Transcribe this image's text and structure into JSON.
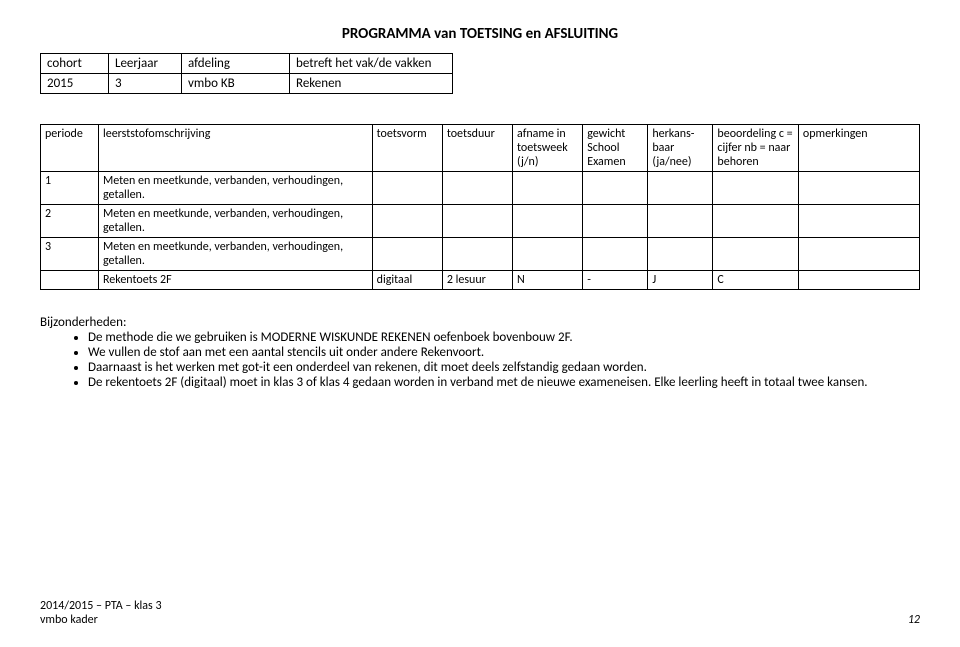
{
  "title": "PROGRAMMA van TOETSING en AFSLUITING",
  "meta": {
    "headers": [
      "cohort",
      "Leerjaar",
      "afdeling",
      "betreft het vak/de vakken"
    ],
    "row": [
      "2015",
      "3",
      "vmbo KB",
      "Rekenen"
    ],
    "col_widths": [
      "55px",
      "60px",
      "95px",
      "150px"
    ]
  },
  "main": {
    "headers": [
      "periode",
      "leerststofomschrijving",
      "toetsvorm",
      "toetsduur",
      "afname in toetsweek (j/n)",
      "gewicht School Examen",
      "herkans-baar (ja/nee)",
      "beoordeling c = cijfer nb = naar behoren",
      "opmerkingen"
    ],
    "col_widths": [
      "48px",
      "260px",
      "60px",
      "60px",
      "60px",
      "55px",
      "55px",
      "75px",
      "110px"
    ],
    "rows": [
      [
        "1",
        "Meten en meetkunde, verbanden, verhoudingen, getallen.",
        "",
        "",
        "",
        "",
        "",
        "",
        ""
      ],
      [
        "2",
        "Meten en meetkunde, verbanden, verhoudingen, getallen.",
        "",
        "",
        "",
        "",
        "",
        "",
        ""
      ],
      [
        "3",
        "Meten en meetkunde, verbanden, verhoudingen, getallen.",
        "",
        "",
        "",
        "",
        "",
        "",
        ""
      ],
      [
        "",
        "Rekentoets 2F",
        "digitaal",
        "2 lesuur",
        "N",
        "-",
        "J",
        "C",
        ""
      ]
    ]
  },
  "bijz": {
    "label": "Bijzonderheden:",
    "items": [
      "De methode die we gebruiken is MODERNE WISKUNDE REKENEN  oefenboek bovenbouw 2F.",
      "We vullen de stof aan met een aantal stencils uit onder andere Rekenvoort.",
      "Daarnaast is het werken met got-it een onderdeel van rekenen, dit moet deels zelfstandig gedaan worden.",
      "De rekentoets 2F (digitaal) moet in klas 3 of klas 4 gedaan worden in verband met de nieuwe exameneisen. Elke leerling heeft in totaal twee kansen."
    ]
  },
  "footer": {
    "line1": "2014/2015 – PTA – klas 3",
    "line2": "vmbo kader",
    "page": "12"
  }
}
